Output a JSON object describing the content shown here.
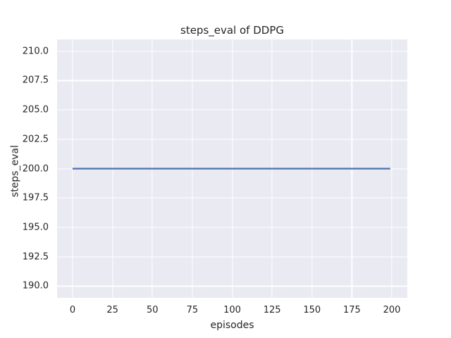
{
  "chart_data": {
    "type": "line",
    "title": "steps_eval of DDPG",
    "xlabel": "episodes",
    "ylabel": "steps_eval",
    "xlim": [
      -9.7,
      209.7
    ],
    "ylim": [
      189.0,
      211.0
    ],
    "xticks": [
      0,
      25,
      50,
      75,
      100,
      125,
      150,
      175,
      200
    ],
    "xtick_labels": [
      "0",
      "25",
      "50",
      "75",
      "100",
      "125",
      "150",
      "175",
      "200"
    ],
    "yticks": [
      190.0,
      192.5,
      195.0,
      197.5,
      200.0,
      202.5,
      205.0,
      207.5,
      210.0
    ],
    "ytick_labels": [
      "190.0",
      "192.5",
      "195.0",
      "197.5",
      "200.0",
      "202.5",
      "205.0",
      "207.5",
      "210.0"
    ],
    "grid": true,
    "legend": "none",
    "series": [
      {
        "name": "DDPG",
        "color": "#4c72b0",
        "x": [
          0,
          199
        ],
        "y": [
          200,
          200
        ]
      }
    ],
    "colors": {
      "figure_background": "#ffffff",
      "axes_background": "#eaeaf2",
      "grid": "#ffffff",
      "text": "#262626",
      "line": "#4c72b0"
    }
  }
}
